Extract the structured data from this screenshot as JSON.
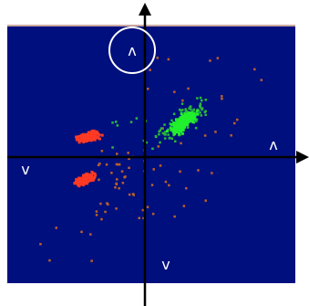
{
  "colors": {
    "background": "#000f7e",
    "axis": "#000000",
    "glyph": "#ffffff",
    "cluster_green": "#21f02c",
    "cluster_red": "#ff3a24",
    "scatter_brown": "#b8602b",
    "scatter_green": "#2bb83a",
    "frame_top": "#c8a7a0"
  },
  "labels": {
    "top_circled": "ʌ",
    "right": "ʌ",
    "left": "v",
    "bottom": "v"
  },
  "icons": {
    "top_circle": "circle-outline-icon",
    "x_arrow": "arrow-right-icon",
    "y_arrow": "arrow-up-icon"
  }
}
